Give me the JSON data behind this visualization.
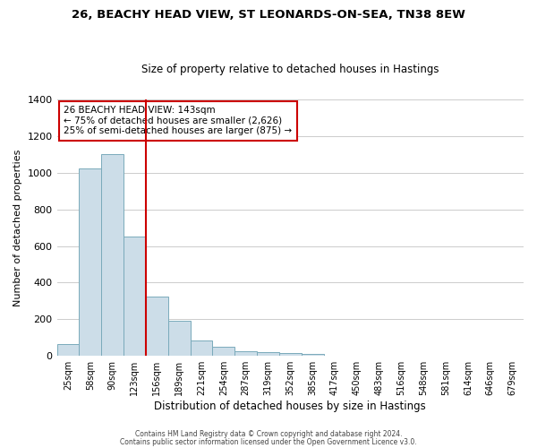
{
  "title": "26, BEACHY HEAD VIEW, ST LEONARDS-ON-SEA, TN38 8EW",
  "subtitle": "Size of property relative to detached houses in Hastings",
  "xlabel": "Distribution of detached houses by size in Hastings",
  "ylabel": "Number of detached properties",
  "bar_values": [
    65,
    1025,
    1100,
    650,
    325,
    190,
    85,
    50,
    25,
    20,
    15,
    10,
    0,
    0,
    0,
    0,
    0,
    0,
    0,
    0,
    0
  ],
  "bar_labels": [
    "25sqm",
    "58sqm",
    "90sqm",
    "123sqm",
    "156sqm",
    "189sqm",
    "221sqm",
    "254sqm",
    "287sqm",
    "319sqm",
    "352sqm",
    "385sqm",
    "417sqm",
    "450sqm",
    "483sqm",
    "516sqm",
    "548sqm",
    "581sqm",
    "614sqm",
    "646sqm",
    "679sqm"
  ],
  "bar_color": "#ccdde8",
  "bar_edge_color": "#7aaabb",
  "grid_color": "#cccccc",
  "vline_x": 4.0,
  "vline_color": "#cc0000",
  "annotation_text": "26 BEACHY HEAD VIEW: 143sqm\n← 75% of detached houses are smaller (2,626)\n25% of semi-detached houses are larger (875) →",
  "annotation_box_color": "#cc0000",
  "ylim": [
    0,
    1400
  ],
  "yticks": [
    0,
    200,
    400,
    600,
    800,
    1000,
    1200,
    1400
  ],
  "footer1": "Contains HM Land Registry data © Crown copyright and database right 2024.",
  "footer2": "Contains public sector information licensed under the Open Government Licence v3.0.",
  "background_color": "#ffffff",
  "num_bars": 21
}
